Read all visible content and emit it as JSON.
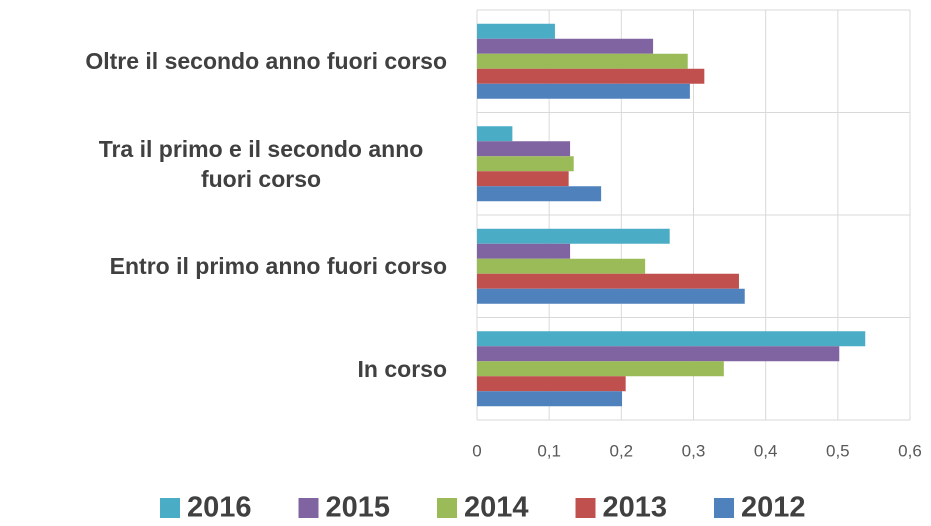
{
  "chart_data": {
    "type": "bar",
    "orientation": "horizontal",
    "categories": [
      "Oltre il secondo anno fuori corso",
      "Tra il primo e il secondo anno fuori corso",
      "Entro il primo anno fuori corso",
      "In corso"
    ],
    "series": [
      {
        "name": "2016",
        "color": "#4bacc6",
        "values": [
          0.108,
          0.049,
          0.267,
          0.538
        ]
      },
      {
        "name": "2015",
        "color": "#8064a2",
        "values": [
          0.244,
          0.129,
          0.129,
          0.502
        ]
      },
      {
        "name": "2014",
        "color": "#9bbb59",
        "values": [
          0.292,
          0.134,
          0.233,
          0.342
        ]
      },
      {
        "name": "2013",
        "color": "#c0504d",
        "values": [
          0.315,
          0.127,
          0.363,
          0.206
        ]
      },
      {
        "name": "2012",
        "color": "#4f81bd",
        "values": [
          0.295,
          0.172,
          0.371,
          0.201
        ]
      }
    ],
    "xlim": [
      0,
      0.6
    ],
    "xticks": [
      0,
      {
        "value": 0.1,
        "label": "0,1"
      },
      {
        "value": 0.2,
        "label": "0,2"
      },
      {
        "value": 0.3,
        "label": "0,3"
      },
      {
        "value": 0.4,
        "label": "0,4"
      },
      {
        "value": 0.5,
        "label": "0,5"
      },
      {
        "value": 0.6,
        "label": "0,6"
      }
    ],
    "grid": true,
    "legend": "bottom"
  }
}
